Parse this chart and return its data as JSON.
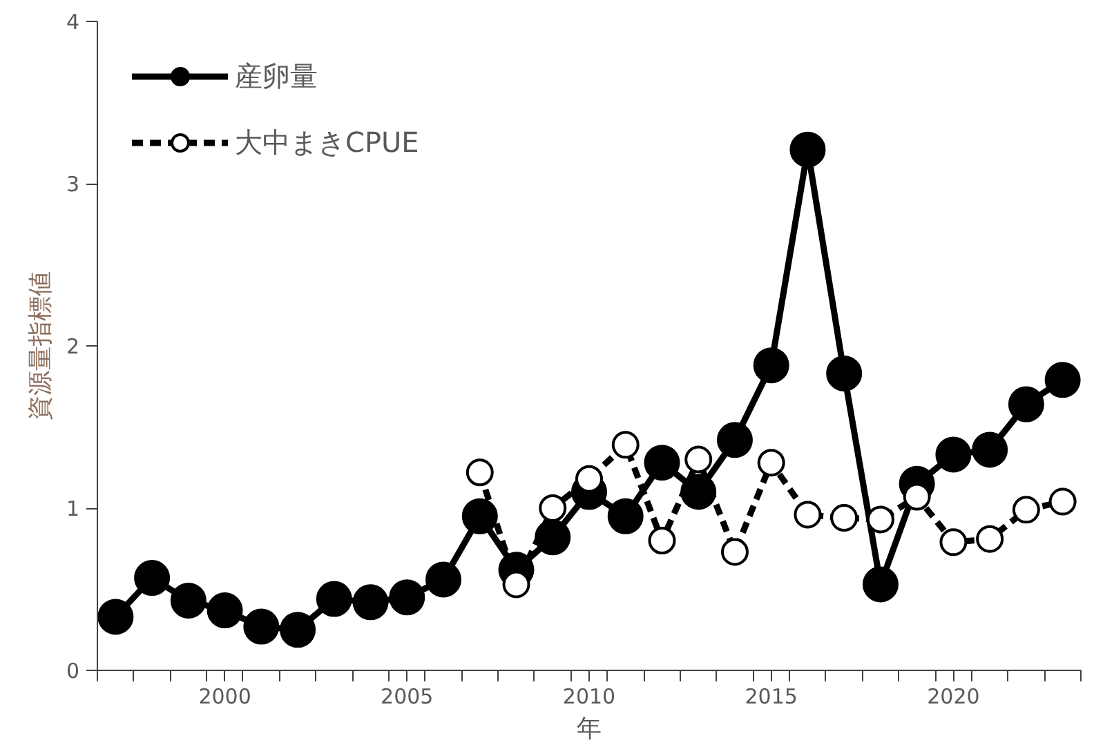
{
  "chart_data": {
    "type": "line",
    "xlabel": "年",
    "ylabel": "資源量指標値",
    "x": [
      1997,
      1998,
      1999,
      2000,
      2001,
      2002,
      2003,
      2004,
      2005,
      2006,
      2007,
      2008,
      2009,
      2010,
      2011,
      2012,
      2013,
      2014,
      2015,
      2016,
      2017,
      2018,
      2019,
      2020,
      2021,
      2022,
      2023
    ],
    "series": [
      {
        "name": "産卵量",
        "color": "#000000",
        "marker": "circle",
        "line_style": "solid",
        "values": [
          0.33,
          0.57,
          0.43,
          0.37,
          0.27,
          0.25,
          0.44,
          0.42,
          0.45,
          0.56,
          0.95,
          0.62,
          0.82,
          1.1,
          0.95,
          1.28,
          1.1,
          1.42,
          1.88,
          3.21,
          1.83,
          0.53,
          1.15,
          1.33,
          1.36,
          1.64,
          1.79
        ]
      },
      {
        "name": "大中まきCPUE",
        "color": "#000000",
        "marker": "circle",
        "line_style": "dashed",
        "values": [
          null,
          null,
          null,
          null,
          null,
          null,
          null,
          null,
          null,
          null,
          1.22,
          0.53,
          1.0,
          1.18,
          1.39,
          0.8,
          1.3,
          0.73,
          1.28,
          0.96,
          0.94,
          0.93,
          1.07,
          0.79,
          0.81,
          0.99,
          1.04
        ]
      }
    ],
    "xlim": [
      1996.5,
      2023.5
    ],
    "xticks": [
      {
        "value": 1996.5,
        "label": null
      },
      {
        "value": 1997.5,
        "label": null
      },
      {
        "value": 1998.5,
        "label": null
      },
      {
        "value": 1999.5,
        "label": null
      },
      {
        "value": 2000,
        "label": "2000"
      },
      {
        "value": 2000.5,
        "label": null
      },
      {
        "value": 2001.5,
        "label": null
      },
      {
        "value": 2002.5,
        "label": null
      },
      {
        "value": 2003.5,
        "label": null
      },
      {
        "value": 2004.5,
        "label": null
      },
      {
        "value": 2005,
        "label": "2005"
      },
      {
        "value": 2005.5,
        "label": null
      },
      {
        "value": 2006.5,
        "label": null
      },
      {
        "value": 2007.5,
        "label": null
      },
      {
        "value": 2008.5,
        "label": null
      },
      {
        "value": 2009.5,
        "label": null
      },
      {
        "value": 2010,
        "label": "2010"
      },
      {
        "value": 2010.5,
        "label": null
      },
      {
        "value": 2011.5,
        "label": null
      },
      {
        "value": 2012.5,
        "label": null
      },
      {
        "value": 2013.5,
        "label": null
      },
      {
        "value": 2014.5,
        "label": null
      },
      {
        "value": 2015,
        "label": "2015"
      },
      {
        "value": 2015.5,
        "label": null
      },
      {
        "value": 2016.5,
        "label": null
      },
      {
        "value": 2017.5,
        "label": null
      },
      {
        "value": 2018.5,
        "label": null
      },
      {
        "value": 2019.5,
        "label": null
      },
      {
        "value": 2020,
        "label": "2020"
      },
      {
        "value": 2020.5,
        "label": null
      },
      {
        "value": 2021.5,
        "label": null
      },
      {
        "value": 2022.5,
        "label": null
      },
      {
        "value": 2023.5,
        "label": null
      }
    ],
    "ylim": [
      0,
      4
    ],
    "yticks": [
      0,
      1,
      2,
      3,
      4
    ],
    "grid": false,
    "legend": "top left"
  }
}
